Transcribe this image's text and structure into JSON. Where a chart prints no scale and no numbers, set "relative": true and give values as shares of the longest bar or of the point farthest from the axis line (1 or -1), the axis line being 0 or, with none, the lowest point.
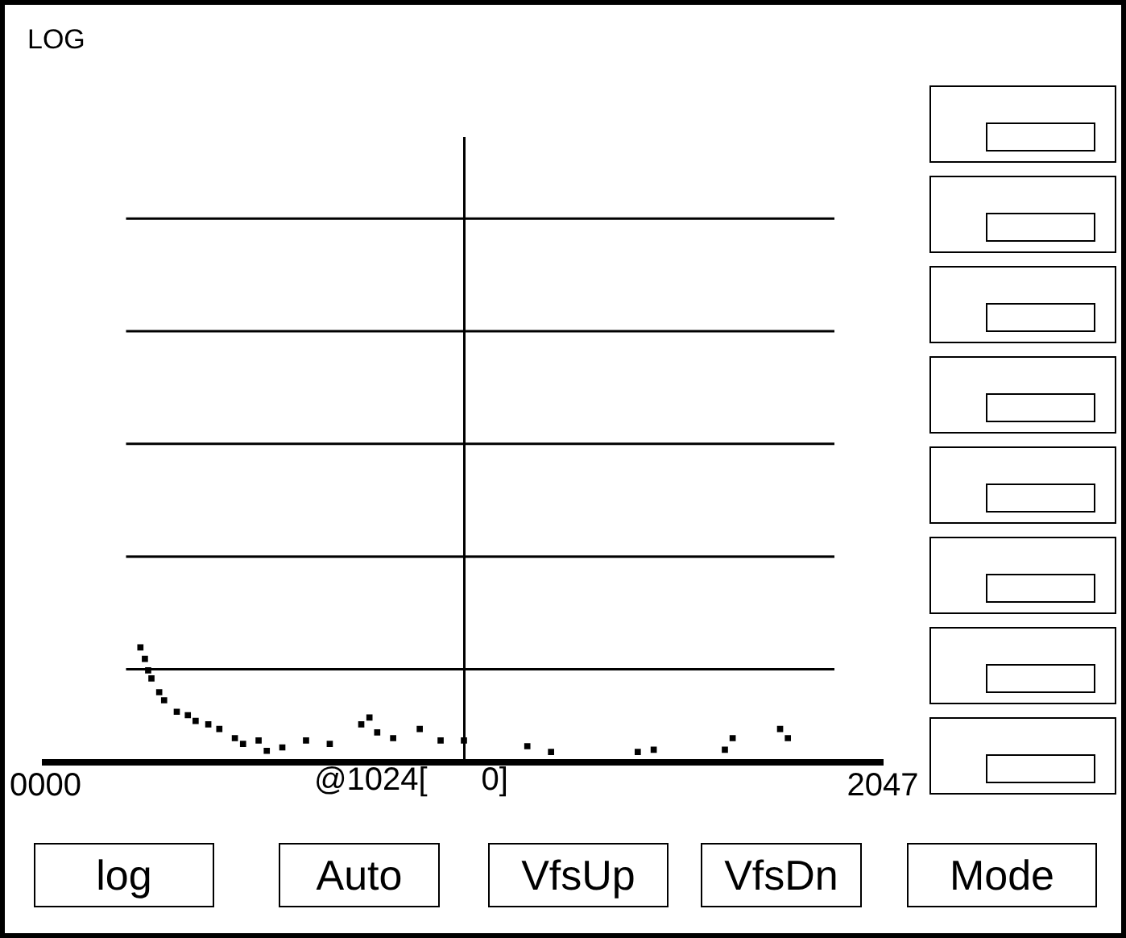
{
  "chart_data": {
    "type": "scatter",
    "title": "LOG",
    "relative": true,
    "marker": "square",
    "xlim": [
      0,
      2047
    ],
    "xticks": [
      {
        "value": 0,
        "label": "0000"
      },
      2047
    ],
    "ref_lines": [
      {
        "axis": "x",
        "value": 1024
      },
      {
        "axis": "y",
        "value": 0.81
      },
      {
        "axis": "y",
        "value": 1.79
      },
      {
        "axis": "y",
        "value": 2.77
      },
      {
        "axis": "y",
        "value": 3.75
      },
      {
        "axis": "y",
        "value": 4.73
      }
    ],
    "annotations": [
      "@1024[      0]",
      "log",
      "Auto",
      "VfsUp",
      "VfsDn",
      "Mode"
    ],
    "series": [
      {
        "color": "#000000",
        "x": [
          232,
          243,
          251,
          259,
          278,
          290,
          321,
          348,
          367,
          398,
          425,
          463,
          483,
          521,
          541,
          579,
          637,
          695,
          772,
          792,
          811,
          850,
          915,
          966,
          1023,
          1178,
          1236,
          1448,
          1487,
          1661,
          1680,
          1796,
          1815
        ],
        "values": [
          1.0,
          0.9,
          0.8,
          0.73,
          0.61,
          0.54,
          0.44,
          0.41,
          0.36,
          0.33,
          0.29,
          0.21,
          0.16,
          0.19,
          0.1,
          0.13,
          0.19,
          0.16,
          0.33,
          0.39,
          0.26,
          0.21,
          0.29,
          0.19,
          0.19,
          0.14,
          0.09,
          0.09,
          0.11,
          0.11,
          0.21,
          0.29,
          0.21
        ]
      }
    ]
  }
}
